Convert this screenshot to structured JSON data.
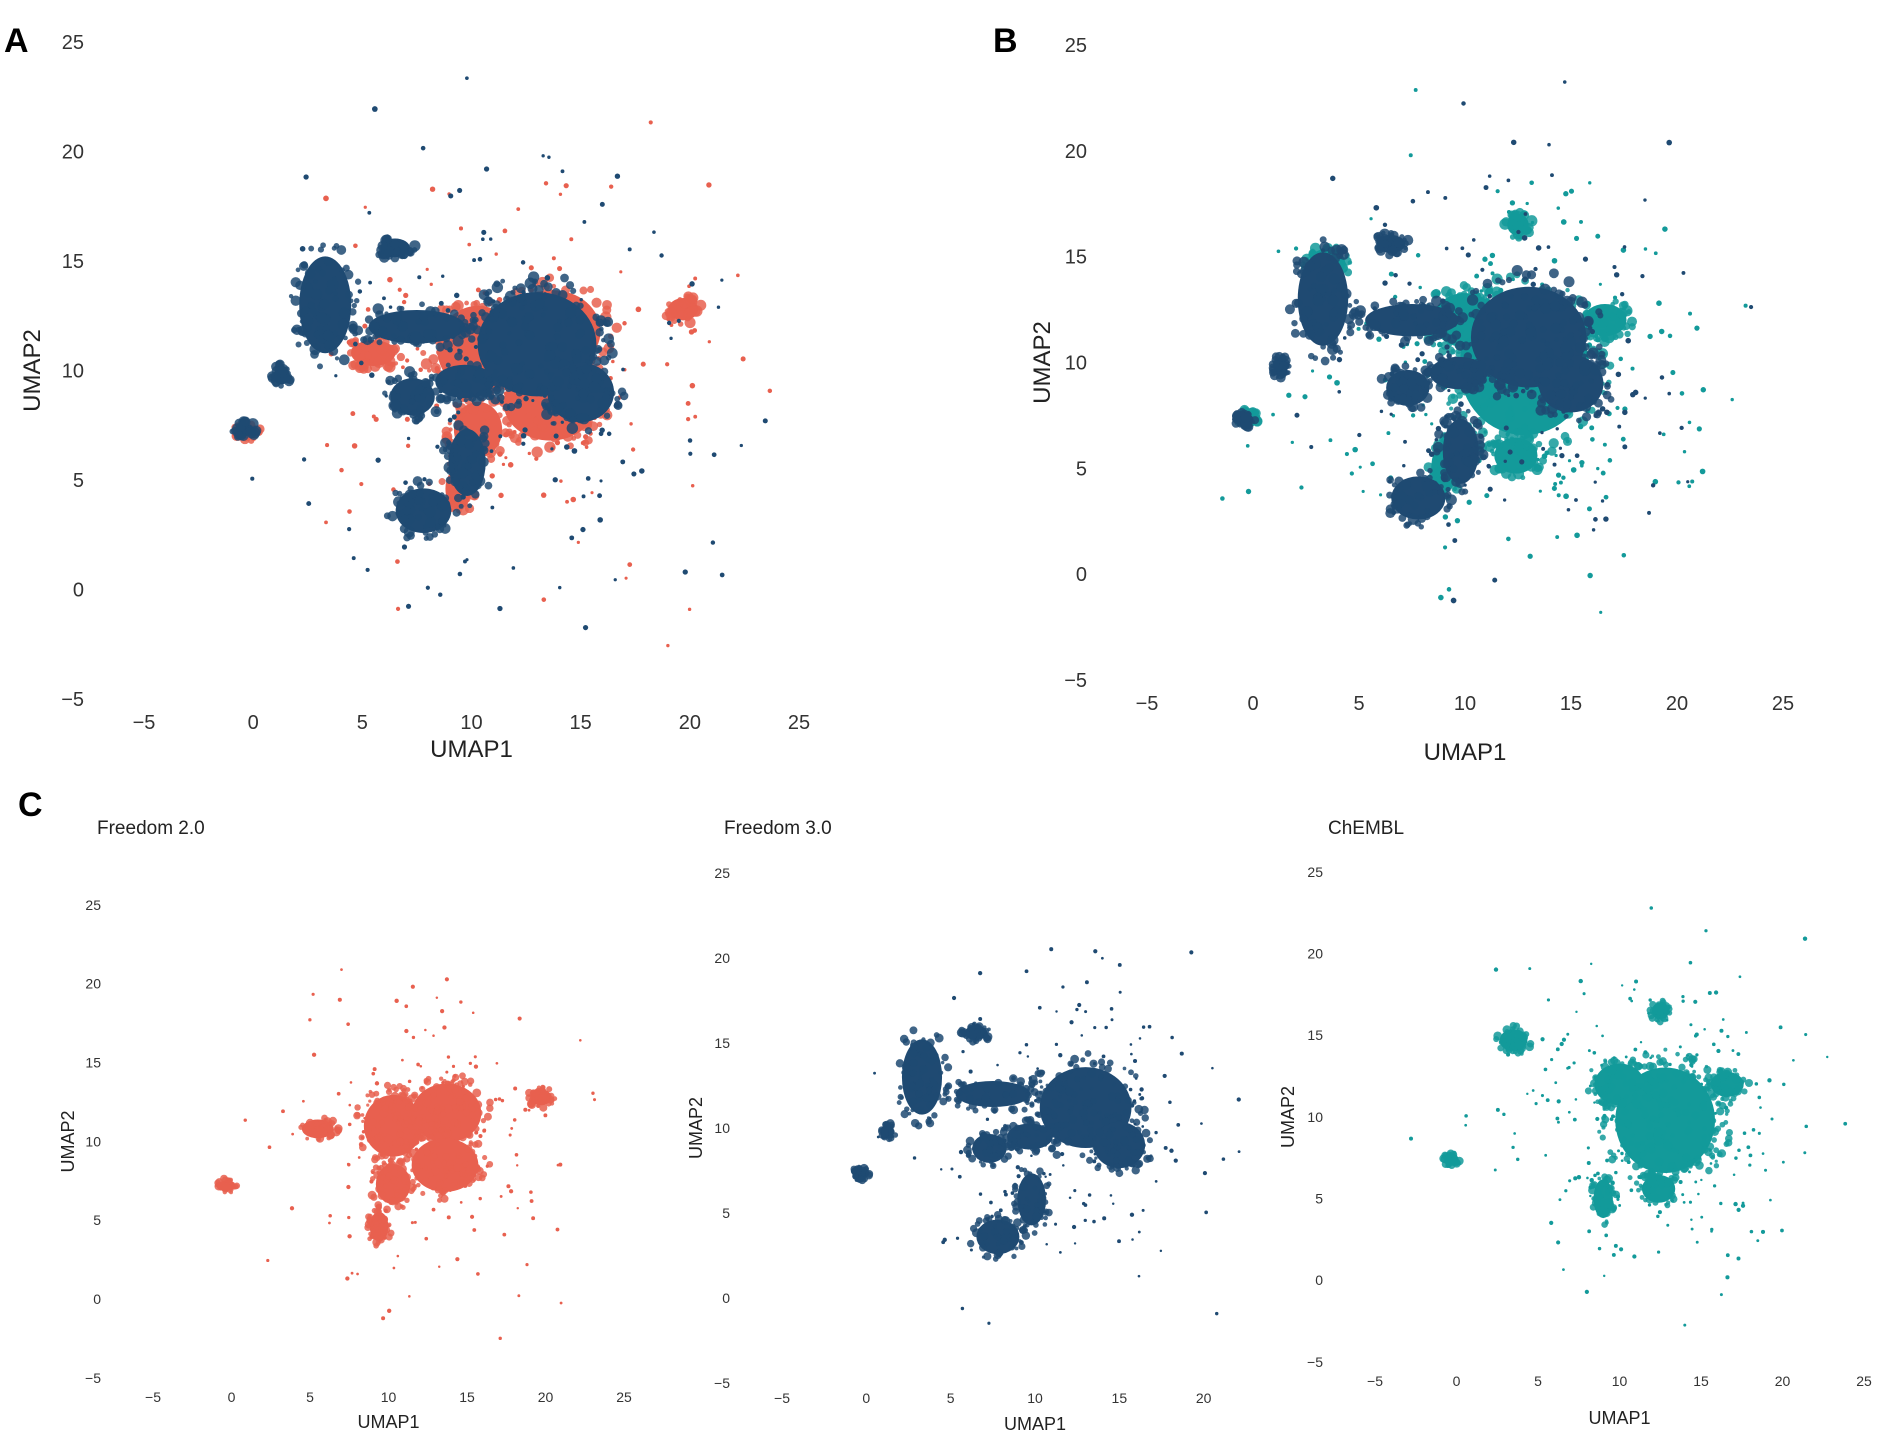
{
  "colors": {
    "freedom2": "#e8604f",
    "freedom3": "#1f4a72",
    "chembl": "#139a9a"
  },
  "chart_data": [
    {
      "panel": "A",
      "type": "scatter",
      "title": "",
      "xlabel": "UMAP1",
      "ylabel": "UMAP2",
      "xlim": [
        -5,
        25
      ],
      "ylim": [
        -5,
        25
      ],
      "xticks": [
        "−5",
        "0",
        "5",
        "10",
        "15",
        "20",
        "25"
      ],
      "yticks": [
        "−5",
        "0",
        "5",
        "10",
        "15",
        "20",
        "25"
      ],
      "series": [
        "freedom2",
        "freedom3"
      ],
      "grid": false
    },
    {
      "panel": "B",
      "type": "scatter",
      "title": "",
      "xlabel": "UMAP1",
      "ylabel": "UMAP2",
      "xlim": [
        -5,
        25
      ],
      "ylim": [
        -5,
        25
      ],
      "xticks": [
        "−5",
        "0",
        "5",
        "10",
        "15",
        "20",
        "25"
      ],
      "yticks": [
        "−5",
        "0",
        "5",
        "10",
        "15",
        "20",
        "25"
      ],
      "series": [
        "chembl",
        "freedom3"
      ],
      "grid": false
    },
    {
      "panel": "C",
      "type": "scatter",
      "title": "Freedom 2.0",
      "xlabel": "UMAP1",
      "ylabel": "UMAP2",
      "xlim": [
        -5,
        25
      ],
      "ylim": [
        -5,
        25
      ],
      "xticks": [
        "−5",
        "0",
        "5",
        "10",
        "15",
        "20",
        "25"
      ],
      "yticks": [
        "−5",
        "0",
        "5",
        "10",
        "15",
        "20",
        "25"
      ],
      "series": [
        "freedom2"
      ],
      "grid": false
    },
    {
      "panel": "",
      "type": "scatter",
      "title": "Freedom 3.0",
      "xlabel": "UMAP1",
      "ylabel": "UMAP2",
      "xlim": [
        -5,
        25
      ],
      "ylim": [
        -5,
        25
      ],
      "xticks": [
        "−5",
        "0",
        "5",
        "10",
        "15",
        "20"
      ],
      "yticks": [
        "−5",
        "0",
        "5",
        "10",
        "15",
        "20",
        "25"
      ],
      "series": [
        "freedom3"
      ],
      "grid": false
    },
    {
      "panel": "",
      "type": "scatter",
      "title": "ChEMBL",
      "xlabel": "UMAP1",
      "ylabel": "UMAP2",
      "xlim": [
        -5,
        25
      ],
      "ylim": [
        -5,
        25
      ],
      "xticks": [
        "−5",
        "0",
        "5",
        "10",
        "15",
        "20",
        "25"
      ],
      "yticks": [
        "−5",
        "0",
        "5",
        "10",
        "15",
        "20",
        "25"
      ],
      "series": [
        "chembl"
      ],
      "grid": false
    }
  ],
  "series_clusters": {
    "freedom3": [
      {
        "x": 13,
        "y": 11.2,
        "rx": 3.2,
        "ry": 2.8
      },
      {
        "x": 15,
        "y": 9,
        "rx": 1.8,
        "ry": 1.6
      },
      {
        "x": 3.3,
        "y": 13,
        "rx": 1.4,
        "ry": 2.6
      },
      {
        "x": 6.5,
        "y": 15.6,
        "rx": 0.8,
        "ry": 0.5
      },
      {
        "x": 7.5,
        "y": 12,
        "rx": 2.6,
        "ry": 0.9
      },
      {
        "x": 7.3,
        "y": 8.8,
        "rx": 1.2,
        "ry": 1.0
      },
      {
        "x": 9.7,
        "y": 9.5,
        "rx": 1.6,
        "ry": 0.9
      },
      {
        "x": 9.8,
        "y": 5.8,
        "rx": 1.0,
        "ry": 1.8
      },
      {
        "x": 7.8,
        "y": 3.6,
        "rx": 1.5,
        "ry": 1.2
      },
      {
        "x": 1.3,
        "y": 9.8,
        "rx": 0.4,
        "ry": 0.5
      },
      {
        "x": -0.4,
        "y": 7.3,
        "rx": 0.5,
        "ry": 0.35
      }
    ],
    "freedom2": [
      {
        "x": 10.3,
        "y": 11,
        "rx": 2.2,
        "ry": 2.3
      },
      {
        "x": 13.7,
        "y": 11.8,
        "rx": 2.6,
        "ry": 2.2
      },
      {
        "x": 13.6,
        "y": 8.5,
        "rx": 2.5,
        "ry": 2.0
      },
      {
        "x": 10.3,
        "y": 7.3,
        "rx": 1.3,
        "ry": 1.5
      },
      {
        "x": 9.4,
        "y": 4.6,
        "rx": 0.7,
        "ry": 1.1
      },
      {
        "x": 19.7,
        "y": 12.8,
        "rx": 0.8,
        "ry": 0.6
      },
      {
        "x": -0.3,
        "y": 7.2,
        "rx": 0.6,
        "ry": 0.4
      },
      {
        "x": 5.5,
        "y": 10.8,
        "rx": 1.2,
        "ry": 0.7
      }
    ],
    "chembl": [
      {
        "x": 12.8,
        "y": 9.8,
        "rx": 3.6,
        "ry": 3.8
      },
      {
        "x": 10,
        "y": 12,
        "rx": 1.8,
        "ry": 1.5
      },
      {
        "x": 16.6,
        "y": 12,
        "rx": 1.2,
        "ry": 0.9
      },
      {
        "x": 9,
        "y": 5,
        "rx": 0.7,
        "ry": 1.4
      },
      {
        "x": 12.4,
        "y": 5.6,
        "rx": 1.2,
        "ry": 1.0
      },
      {
        "x": 3.5,
        "y": 14.7,
        "rx": 1.0,
        "ry": 0.8
      },
      {
        "x": -0.3,
        "y": 7.4,
        "rx": 0.5,
        "ry": 0.4
      },
      {
        "x": 12.5,
        "y": 16.5,
        "rx": 0.6,
        "ry": 0.6
      }
    ]
  }
}
